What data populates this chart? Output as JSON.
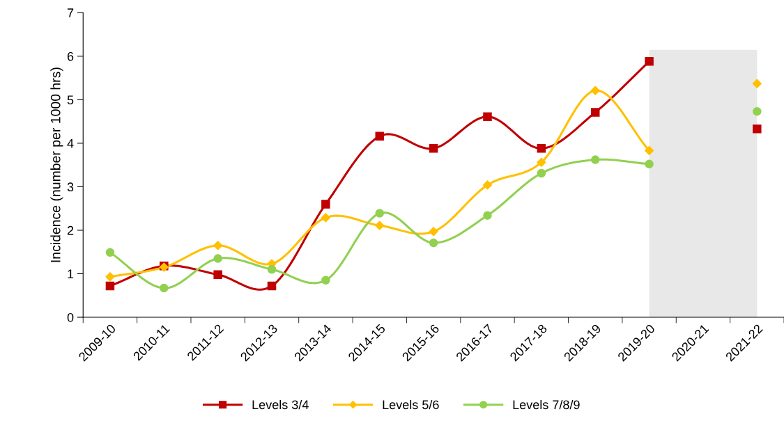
{
  "chart_data": {
    "type": "line",
    "ylabel": "Incidence (number per 1000 hrs)",
    "categories": [
      "2009-10",
      "2010-11",
      "2011-12",
      "2012-13",
      "2013-14",
      "2014-15",
      "2015-16",
      "2016-17",
      "2017-18",
      "2018-19",
      "2019-20",
      "2020-21",
      "2021-22"
    ],
    "series": [
      {
        "name": "Levels 3/4",
        "color": "#c00000",
        "marker": "square",
        "values": [
          0.72,
          1.18,
          0.98,
          0.72,
          2.6,
          4.16,
          3.88,
          4.61,
          3.88,
          4.71,
          5.88,
          null,
          4.33
        ]
      },
      {
        "name": "Levels 5/6",
        "color": "#ffc000",
        "marker": "diamond",
        "values": [
          0.93,
          1.15,
          1.65,
          1.23,
          2.29,
          2.11,
          1.97,
          3.04,
          3.56,
          5.21,
          3.83,
          null,
          5.37
        ]
      },
      {
        "name": "Levels 7/8/9",
        "color": "#92d050",
        "marker": "circle",
        "values": [
          1.49,
          0.67,
          1.35,
          1.1,
          0.85,
          2.39,
          1.71,
          2.34,
          3.31,
          3.62,
          3.52,
          null,
          4.73
        ]
      }
    ],
    "bands": [
      {
        "axis": "x",
        "from": "2019-20",
        "to": "2021-22",
        "color": "#e8e8e8"
      }
    ],
    "ylim": [
      0,
      7
    ],
    "yticks": [
      0,
      1,
      2,
      3,
      4,
      5,
      6,
      7
    ],
    "grid": false,
    "legend": "bottom",
    "line_style": "solid"
  }
}
